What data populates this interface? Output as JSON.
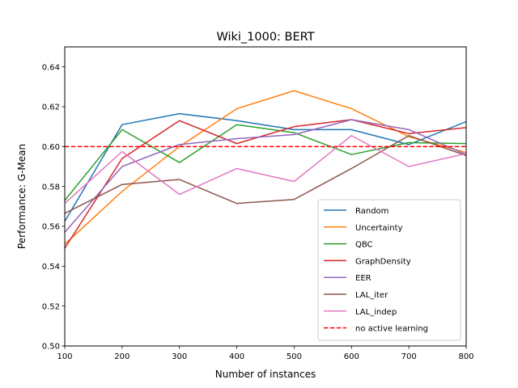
{
  "chart_data": {
    "type": "line",
    "title": "Wiki_1000: BERT",
    "xlabel": "Number of instances",
    "ylabel": "Performance: G-Mean",
    "xlim": [
      100,
      800
    ],
    "ylim": [
      0.5,
      0.65
    ],
    "x": [
      100,
      200,
      300,
      400,
      500,
      600,
      700,
      800
    ],
    "x_ticks": [
      100,
      200,
      300,
      400,
      500,
      600,
      700,
      800
    ],
    "x_tick_labels": [
      "100",
      "200",
      "300",
      "400",
      "500",
      "600",
      "700",
      "800"
    ],
    "y_ticks": [
      0.5,
      0.52,
      0.54,
      0.56,
      0.58,
      0.6,
      0.62,
      0.64
    ],
    "y_tick_labels": [
      "0.50",
      "0.52",
      "0.54",
      "0.56",
      "0.58",
      "0.60",
      "0.62",
      "0.64"
    ],
    "grid": false,
    "legend_position": "lower-right",
    "series": [
      {
        "name": "Random",
        "color": "#1f77b4",
        "values": [
          0.5625,
          0.611,
          0.6165,
          0.613,
          0.6085,
          0.6085,
          0.601,
          0.6125
        ]
      },
      {
        "name": "Uncertainty",
        "color": "#ff7f0e",
        "values": [
          0.551,
          0.5775,
          0.6,
          0.619,
          0.628,
          0.619,
          0.605,
          0.597
        ]
      },
      {
        "name": "QBC",
        "color": "#2ca02c",
        "values": [
          0.573,
          0.6085,
          0.592,
          0.611,
          0.607,
          0.596,
          0.602,
          0.6015
        ]
      },
      {
        "name": "GraphDensity",
        "color": "#d62728",
        "values": [
          0.549,
          0.594,
          0.613,
          0.6015,
          0.61,
          0.6135,
          0.6065,
          0.6095
        ]
      },
      {
        "name": "EER",
        "color": "#9467bd",
        "values": [
          0.557,
          0.59,
          0.601,
          0.604,
          0.606,
          0.6135,
          0.6085,
          0.596
        ]
      },
      {
        "name": "LAL_iter",
        "color": "#8c564b",
        "values": [
          0.5665,
          0.581,
          0.5835,
          0.5715,
          0.5735,
          0.589,
          0.6055,
          0.5955
        ]
      },
      {
        "name": "LAL_indep",
        "color": "#e377c2",
        "values": [
          0.5715,
          0.5975,
          0.576,
          0.589,
          0.5825,
          0.6055,
          0.59,
          0.5965
        ]
      }
    ],
    "reference_line": {
      "name": "no active learning",
      "value": 0.6,
      "color": "#ff0000",
      "style": "dashed"
    }
  }
}
